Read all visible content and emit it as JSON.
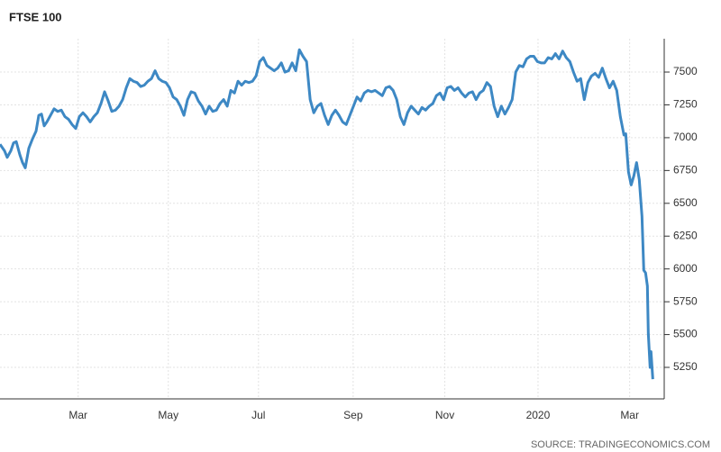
{
  "chart_data": {
    "type": "line",
    "title": "FTSE 100",
    "source": "SOURCE: TRADINGECONOMICS.COM",
    "xlim": [
      0,
      442
    ],
    "ylim": [
      5010,
      7754
    ],
    "xticks": [
      {
        "value": 52,
        "label": "Mar"
      },
      {
        "value": 112,
        "label": "May"
      },
      {
        "value": 172,
        "label": "Jul"
      },
      {
        "value": 235,
        "label": "Sep"
      },
      {
        "value": 296,
        "label": "Nov"
      },
      {
        "value": 358,
        "label": "2020"
      },
      {
        "value": 419,
        "label": "Mar"
      }
    ],
    "yticks": [
      5250,
      5500,
      5750,
      6000,
      6250,
      6500,
      6750,
      7000,
      7250,
      7500
    ],
    "grid": true,
    "series": [
      {
        "name": "FTSE 100",
        "color": "#3d88c4",
        "x": [
          0,
          3,
          4.8,
          7.2,
          9,
          10.8,
          13.2,
          15,
          16.8,
          19.2,
          21.6,
          24,
          25.8,
          27.6,
          29.4,
          31.2,
          33.6,
          36,
          38.4,
          40.8,
          43.2,
          45.6,
          48,
          50.4,
          52.8,
          55.2,
          57.6,
          60,
          62.4,
          64.8,
          67.2,
          69.6,
          72,
          74.4,
          76.8,
          79.2,
          81.6,
          84,
          86.4,
          88.8,
          91.2,
          93.6,
          96,
          98.4,
          100.8,
          103.2,
          105.6,
          108,
          110.4,
          112.8,
          115.2,
          117.6,
          120,
          122.4,
          124.8,
          127.2,
          129.6,
          132,
          134.4,
          136.8,
          139.2,
          141.6,
          144,
          146.4,
          148.8,
          151.2,
          153.6,
          156,
          158.4,
          160.8,
          163.2,
          165.6,
          168,
          170.4,
          172.8,
          175.2,
          177.6,
          180,
          182.4,
          184.8,
          187.2,
          189.6,
          192,
          194.4,
          196.8,
          199.2,
          201.6,
          204,
          206.4,
          208.8,
          211.2,
          213.6,
          216,
          218.4,
          220.8,
          223.2,
          225.6,
          228,
          230.4,
          232.8,
          235.2,
          237.6,
          240,
          242.4,
          244.8,
          247.2,
          249.6,
          252,
          254.4,
          256.8,
          259.2,
          261.6,
          264,
          266.4,
          268.8,
          271.2,
          273.6,
          276,
          278.4,
          280.8,
          283.2,
          285.6,
          288,
          290.4,
          292.8,
          295.2,
          297.6,
          300,
          302.4,
          304.8,
          307.2,
          309.6,
          312,
          314.4,
          316.8,
          319.2,
          321.6,
          324,
          326.4,
          328.8,
          331.2,
          333.6,
          336,
          338.4,
          340.8,
          343.2,
          345.6,
          348,
          350.4,
          352.8,
          355.2,
          357.6,
          360,
          362.4,
          364.8,
          367.2,
          369.6,
          372,
          374.4,
          376.8,
          379.2,
          381.6,
          384,
          386.4,
          388.8,
          391.2,
          393.6,
          396,
          398.4,
          400.8,
          403.2,
          405.6,
          408,
          410.4,
          412.8,
          415.2,
          416.4,
          418.2,
          420,
          421.8,
          423.6,
          425.4,
          427.2,
          428.4,
          429.6,
          430.8,
          431.4,
          432.6,
          433.2,
          434.4
        ],
        "values": [
          6950,
          6900,
          6850,
          6900,
          6960,
          6970,
          6870,
          6810,
          6770,
          6920,
          6990,
          7050,
          7170,
          7180,
          7090,
          7120,
          7170,
          7220,
          7200,
          7210,
          7160,
          7140,
          7100,
          7070,
          7160,
          7190,
          7160,
          7120,
          7160,
          7190,
          7260,
          7350,
          7280,
          7200,
          7210,
          7240,
          7290,
          7380,
          7450,
          7430,
          7420,
          7390,
          7400,
          7430,
          7450,
          7510,
          7450,
          7430,
          7420,
          7380,
          7310,
          7290,
          7240,
          7170,
          7290,
          7350,
          7340,
          7280,
          7240,
          7180,
          7240,
          7200,
          7210,
          7260,
          7290,
          7240,
          7360,
          7340,
          7430,
          7400,
          7430,
          7420,
          7430,
          7470,
          7580,
          7610,
          7550,
          7530,
          7510,
          7530,
          7570,
          7500,
          7510,
          7570,
          7510,
          7670,
          7620,
          7580,
          7290,
          7190,
          7240,
          7260,
          7170,
          7100,
          7170,
          7210,
          7170,
          7120,
          7100,
          7170,
          7240,
          7310,
          7280,
          7340,
          7360,
          7350,
          7360,
          7340,
          7320,
          7380,
          7390,
          7360,
          7290,
          7160,
          7100,
          7190,
          7240,
          7210,
          7180,
          7230,
          7210,
          7240,
          7260,
          7320,
          7340,
          7290,
          7380,
          7390,
          7360,
          7380,
          7340,
          7310,
          7340,
          7350,
          7290,
          7340,
          7360,
          7420,
          7390,
          7240,
          7160,
          7240,
          7180,
          7230,
          7290,
          7500,
          7550,
          7540,
          7600,
          7620,
          7620,
          7580,
          7570,
          7570,
          7610,
          7600,
          7640,
          7600,
          7660,
          7610,
          7580,
          7500,
          7430,
          7450,
          7290,
          7420,
          7470,
          7490,
          7460,
          7530,
          7450,
          7380,
          7430,
          7360,
          7160,
          7020,
          7030,
          6740,
          6640,
          6710,
          6810,
          6680,
          6400,
          5990,
          5970,
          5870,
          5510,
          5250,
          5370,
          5160
        ]
      }
    ]
  }
}
